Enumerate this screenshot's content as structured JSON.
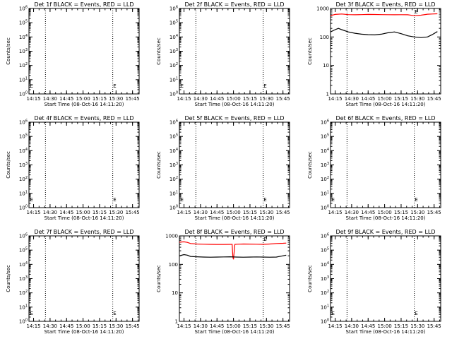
{
  "chart_data": [
    {
      "type": "line",
      "title": "Det 1f BLACK = Events, RED = LLD",
      "xlabel": "Start Time (08-Oct-16 14:11:20)",
      "ylabel": "Counts/sec",
      "log_y": true,
      "ylim": [
        1,
        1000000
      ],
      "y_tick_labels": [
        "10^0",
        "10^1",
        "10^2",
        "10^3",
        "10^4",
        "10^5",
        "10^6"
      ],
      "x_tick_labels": [
        "14:15",
        "14:30",
        "14:45",
        "15:00",
        "15:15",
        "15:30",
        "15:45"
      ],
      "xlim": [
        14.18,
        15.85
      ],
      "dotted_lines_x": [
        14.43,
        15.45
      ],
      "markers": [
        {
          "text": "E",
          "x": 14.22,
          "y": 4
        },
        {
          "text": "E",
          "x": 15.48,
          "y": 4
        }
      ],
      "series": []
    },
    {
      "type": "line",
      "title": "Det 2f BLACK = Events, RED = LLD",
      "xlabel": "Start Time (08-Oct-16 14:11:20)",
      "ylabel": "Counts/sec",
      "log_y": true,
      "ylim": [
        1,
        1000000
      ],
      "y_tick_labels": [
        "10^0",
        "10^1",
        "10^2",
        "10^3",
        "10^4",
        "10^5",
        "10^6"
      ],
      "x_tick_labels": [
        "14:15",
        "14:30",
        "14:45",
        "15:00",
        "15:15",
        "15:30",
        "15:45"
      ],
      "xlim": [
        14.18,
        15.85
      ],
      "dotted_lines_x": [
        14.43,
        15.45
      ],
      "markers": [
        {
          "text": "E",
          "x": 14.22,
          "y": 4
        },
        {
          "text": "E",
          "x": 15.48,
          "y": 4
        }
      ],
      "series": []
    },
    {
      "type": "line",
      "title": "Det 3f BLACK = Events, RED = LLD",
      "xlabel": "Start Time (08-Oct-16 14:11:20)",
      "ylabel": "Counts/sec",
      "log_y": true,
      "ylim": [
        1,
        1000
      ],
      "y_tick_labels": [
        "1",
        "10",
        "100",
        "1000"
      ],
      "x_tick_labels": [
        "14:15",
        "14:30",
        "14:45",
        "15:00",
        "15:15",
        "15:30",
        "15:45"
      ],
      "xlim": [
        14.18,
        15.85
      ],
      "dotted_lines_x": [
        14.43,
        15.45
      ],
      "markers": [
        {
          "text": "E",
          "x": 15.48,
          "y": 800
        }
      ],
      "series": [
        {
          "color": "#ff0000",
          "x": [
            14.18,
            14.25,
            14.35,
            14.45,
            14.55,
            14.65,
            14.75,
            14.85,
            14.95,
            15.05,
            15.15,
            15.25,
            15.35,
            15.45,
            15.55,
            15.65,
            15.72,
            15.8
          ],
          "values": [
            560,
            620,
            640,
            610,
            600,
            610,
            620,
            615,
            610,
            605,
            600,
            605,
            600,
            560,
            580,
            630,
            640,
            650
          ]
        },
        {
          "color": "#000000",
          "x": [
            14.18,
            14.25,
            14.3,
            14.35,
            14.45,
            14.55,
            14.65,
            14.75,
            14.85,
            14.95,
            15.05,
            15.15,
            15.25,
            15.35,
            15.45,
            15.55,
            15.65,
            15.72,
            15.8
          ],
          "values": [
            150,
            180,
            200,
            180,
            150,
            135,
            125,
            120,
            118,
            125,
            140,
            150,
            130,
            110,
            100,
            95,
            100,
            120,
            155
          ]
        }
      ]
    },
    {
      "type": "line",
      "title": "Det 4f BLACK = Events, RED = LLD",
      "xlabel": "Start Time (08-Oct-16 14:11:20)",
      "ylabel": "Counts/sec",
      "log_y": true,
      "ylim": [
        1,
        1000000
      ],
      "y_tick_labels": [
        "10^0",
        "10^1",
        "10^2",
        "10^3",
        "10^4",
        "10^5",
        "10^6"
      ],
      "x_tick_labels": [
        "14:15",
        "14:30",
        "14:45",
        "15:00",
        "15:15",
        "15:30",
        "15:45"
      ],
      "xlim": [
        14.18,
        15.85
      ],
      "dotted_lines_x": [
        14.43,
        15.45
      ],
      "markers": [
        {
          "text": "E",
          "x": 14.22,
          "y": 4
        },
        {
          "text": "E",
          "x": 15.48,
          "y": 4
        }
      ],
      "series": []
    },
    {
      "type": "line",
      "title": "Det 5f BLACK = Events, RED = LLD",
      "xlabel": "Start Time (08-Oct-16 14:11:20)",
      "ylabel": "Counts/sec",
      "log_y": true,
      "ylim": [
        1,
        1000000
      ],
      "y_tick_labels": [
        "10^0",
        "10^1",
        "10^2",
        "10^3",
        "10^4",
        "10^5",
        "10^6"
      ],
      "x_tick_labels": [
        "14:15",
        "14:30",
        "14:45",
        "15:00",
        "15:15",
        "15:30",
        "15:45"
      ],
      "xlim": [
        14.18,
        15.85
      ],
      "dotted_lines_x": [
        14.43,
        15.45
      ],
      "markers": [
        {
          "text": "E",
          "x": 14.22,
          "y": 4
        },
        {
          "text": "E",
          "x": 15.48,
          "y": 4
        }
      ],
      "series": []
    },
    {
      "type": "line",
      "title": "Det 6f BLACK = Events, RED = LLD",
      "xlabel": "Start Time (08-Oct-16 14:11:20)",
      "ylabel": "Counts/sec",
      "log_y": true,
      "ylim": [
        1,
        1000000
      ],
      "y_tick_labels": [
        "10^0",
        "10^1",
        "10^2",
        "10^3",
        "10^4",
        "10^5",
        "10^6"
      ],
      "x_tick_labels": [
        "14:15",
        "14:30",
        "14:45",
        "15:00",
        "15:15",
        "15:30",
        "15:45"
      ],
      "xlim": [
        14.18,
        15.85
      ],
      "dotted_lines_x": [
        14.43,
        15.45
      ],
      "markers": [
        {
          "text": "E",
          "x": 14.22,
          "y": 4
        },
        {
          "text": "E",
          "x": 15.48,
          "y": 4
        }
      ],
      "series": []
    },
    {
      "type": "line",
      "title": "Det 7f BLACK = Events, RED = LLD",
      "xlabel": "Start Time (08-Oct-16 14:11:20)",
      "ylabel": "Counts/sec",
      "log_y": true,
      "ylim": [
        1,
        1000000
      ],
      "y_tick_labels": [
        "10^0",
        "10^1",
        "10^2",
        "10^3",
        "10^4",
        "10^5",
        "10^6"
      ],
      "x_tick_labels": [
        "14:15",
        "14:30",
        "14:45",
        "15:00",
        "15:15",
        "15:30",
        "15:45"
      ],
      "xlim": [
        14.18,
        15.85
      ],
      "dotted_lines_x": [
        14.43,
        15.45
      ],
      "markers": [
        {
          "text": "E",
          "x": 14.22,
          "y": 4
        },
        {
          "text": "E",
          "x": 15.48,
          "y": 4
        }
      ],
      "series": []
    },
    {
      "type": "line",
      "title": "Det 8f BLACK = Events, RED = LLD",
      "xlabel": "Start Time (08-Oct-16 14:11:20)",
      "ylabel": "Counts/sec",
      "log_y": true,
      "ylim": [
        1,
        1000
      ],
      "y_tick_labels": [
        "1",
        "10",
        "100",
        "1000"
      ],
      "x_tick_labels": [
        "14:15",
        "14:30",
        "14:45",
        "15:00",
        "15:15",
        "15:30",
        "15:45"
      ],
      "xlim": [
        14.18,
        15.85
      ],
      "dotted_lines_x": [
        14.43,
        15.45
      ],
      "markers": [
        {
          "text": "E",
          "x": 15.48,
          "y": 800
        }
      ],
      "series": [
        {
          "color": "#ff0000",
          "x": [
            14.18,
            14.25,
            14.3,
            14.35,
            14.45,
            14.55,
            14.65,
            14.75,
            14.85,
            14.95,
            14.98,
            14.99,
            15.0,
            15.02,
            15.05,
            15.15,
            15.25,
            15.35,
            15.45,
            15.55,
            15.65,
            15.75,
            15.8
          ],
          "values": [
            600,
            620,
            590,
            540,
            520,
            510,
            505,
            500,
            500,
            505,
            505,
            180,
            150,
            500,
            510,
            520,
            515,
            510,
            505,
            520,
            540,
            550,
            560
          ]
        },
        {
          "color": "#000000",
          "x": [
            14.18,
            14.25,
            14.3,
            14.35,
            14.45,
            14.55,
            14.65,
            14.75,
            14.85,
            14.95,
            15.05,
            15.15,
            15.25,
            15.35,
            15.45,
            15.55,
            15.65,
            15.75,
            15.8
          ],
          "values": [
            200,
            220,
            210,
            190,
            185,
            180,
            178,
            180,
            182,
            185,
            180,
            178,
            180,
            182,
            180,
            178,
            180,
            200,
            210
          ]
        }
      ]
    },
    {
      "type": "line",
      "title": "Det 9f BLACK = Events, RED = LLD",
      "xlabel": "Start Time (08-Oct-16 14:11:20)",
      "ylabel": "Counts/sec",
      "log_y": true,
      "ylim": [
        1,
        1000000
      ],
      "y_tick_labels": [
        "10^0",
        "10^1",
        "10^2",
        "10^3",
        "10^4",
        "10^5",
        "10^6"
      ],
      "x_tick_labels": [
        "14:15",
        "14:30",
        "14:45",
        "15:00",
        "15:15",
        "15:30",
        "15:45"
      ],
      "xlim": [
        14.18,
        15.85
      ],
      "dotted_lines_x": [
        14.43,
        15.45
      ],
      "markers": [
        {
          "text": "E",
          "x": 14.22,
          "y": 4
        },
        {
          "text": "E",
          "x": 15.48,
          "y": 4
        }
      ],
      "series": []
    }
  ]
}
